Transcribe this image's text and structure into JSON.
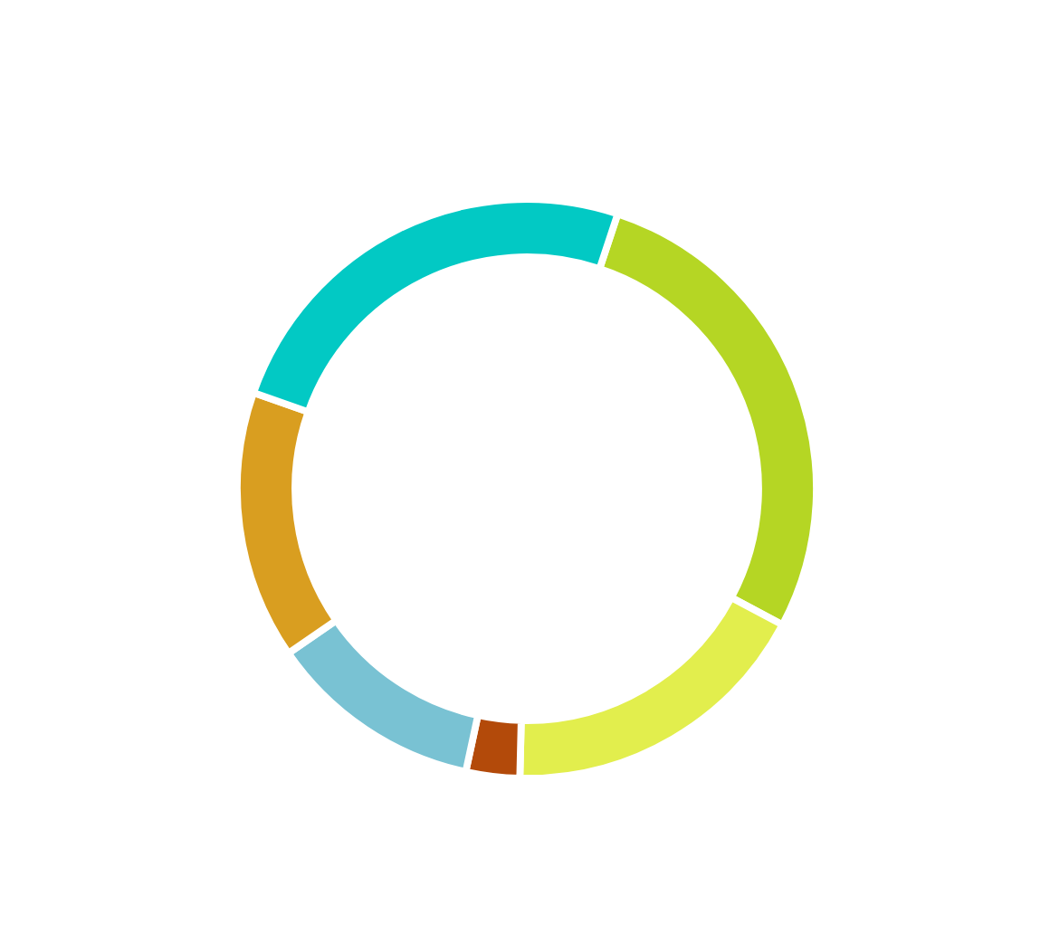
{
  "chart_data": {
    "type": "donut",
    "categories": [
      null,
      null,
      null,
      null,
      null,
      null
    ],
    "values": [
      27.7,
      17.6,
      3.0,
      12.0,
      15.0,
      24.7
    ],
    "colors": [
      "#b5d624",
      "#e2ee4d",
      "#b34a0a",
      "#79c2d3",
      "#d99e20",
      "#02c9c4"
    ]
  }
}
